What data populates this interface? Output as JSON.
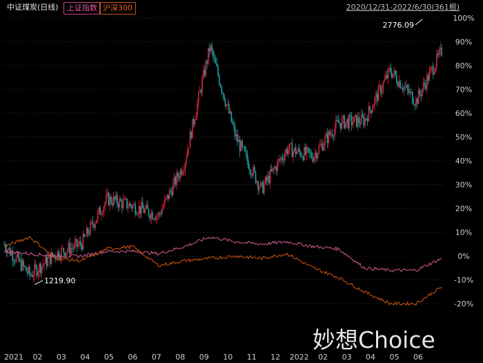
{
  "header": {
    "title": "中证煤炭(日线)",
    "legend": [
      "上证指数",
      "沪深300"
    ],
    "range": "2020/12/31-2022/6/30(361根)"
  },
  "watermark": "妙想Choice",
  "colors": {
    "up": "#d7263d",
    "down": "#1fa3a3",
    "sh": "#d45a96",
    "hs300": "#d4560f",
    "grid": "#333333",
    "text": "#cfcfcf"
  },
  "chart_data": {
    "type": "line",
    "y_axis_ticks": [
      "100%",
      "90%",
      "80%",
      "70%",
      "60%",
      "50%",
      "40%",
      "30%",
      "20%",
      "10%",
      "0%",
      "-10%",
      "-20%"
    ],
    "ylim": [
      -0.2,
      1.0
    ],
    "x_axis_ticks": [
      "2021",
      "02",
      "03",
      "04",
      "05",
      "06",
      "07",
      "08",
      "09",
      "10",
      "11",
      "12",
      "2022",
      "02",
      "03",
      "04",
      "05",
      "06"
    ],
    "annotations": [
      {
        "label": "2776.09",
        "x": "2022-06",
        "y": 1.0
      },
      {
        "label": "1219.90",
        "x": "2021-02",
        "y": -0.12
      }
    ],
    "series": [
      {
        "name": "中证煤炭(日线)",
        "style": "candlestick",
        "x": [
          "2021-01",
          "2021-02",
          "2021-03",
          "2021-04",
          "2021-05",
          "2021-06",
          "2021-07",
          "2021-08",
          "2021-09",
          "2021-10",
          "2021-11",
          "2021-12",
          "2022-01",
          "2022-02",
          "2022-03",
          "2022-04",
          "2022-05",
          "2022-06"
        ],
        "values": [
          0.05,
          -0.08,
          0.01,
          0.05,
          0.24,
          0.21,
          0.17,
          0.39,
          0.88,
          0.5,
          0.28,
          0.45,
          0.42,
          0.56,
          0.57,
          0.78,
          0.65,
          0.86
        ]
      },
      {
        "name": "上证指数",
        "x": [
          "2021-01",
          "2021-02",
          "2021-03",
          "2021-04",
          "2021-05",
          "2021-06",
          "2021-07",
          "2021-08",
          "2021-09",
          "2021-10",
          "2021-11",
          "2021-12",
          "2022-01",
          "2022-02",
          "2022-03",
          "2022-04",
          "2022-05",
          "2022-06"
        ],
        "values": [
          0.02,
          0.01,
          0.0,
          0.0,
          0.02,
          0.02,
          0.01,
          0.04,
          0.08,
          0.06,
          0.05,
          0.06,
          0.04,
          0.03,
          -0.05,
          -0.06,
          -0.06,
          -0.01
        ]
      },
      {
        "name": "沪深300",
        "x": [
          "2021-01",
          "2021-02",
          "2021-03",
          "2021-04",
          "2021-05",
          "2021-06",
          "2021-07",
          "2021-08",
          "2021-09",
          "2021-10",
          "2021-11",
          "2021-12",
          "2022-01",
          "2022-02",
          "2022-03",
          "2022-04",
          "2022-05",
          "2022-06"
        ],
        "values": [
          0.04,
          0.08,
          -0.01,
          -0.02,
          0.03,
          0.04,
          -0.04,
          -0.02,
          -0.01,
          0.0,
          -0.01,
          0.01,
          -0.05,
          -0.09,
          -0.15,
          -0.2,
          -0.2,
          -0.13
        ]
      }
    ]
  }
}
